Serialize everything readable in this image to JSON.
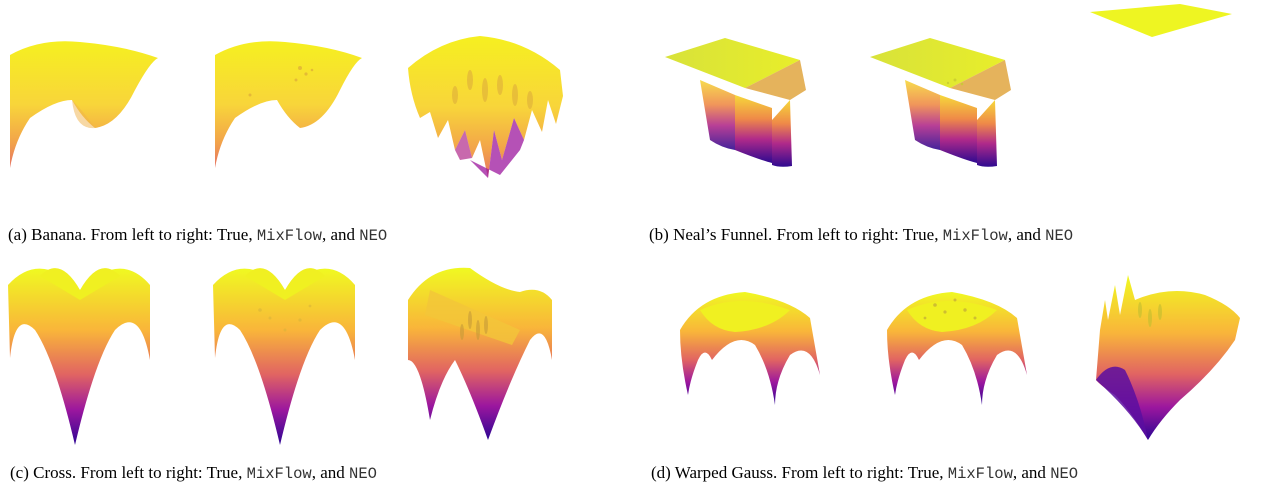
{
  "subfigures": [
    {
      "id": "a",
      "label": "(a)",
      "name": "Banana.",
      "order_text": "From left to right: True,",
      "method_1": "MixFlow",
      "conjunction": ", and",
      "method_2": "NEO"
    },
    {
      "id": "b",
      "label": "(b)",
      "name": "Neal’s Funnel.",
      "order_text": "From left to right: True,",
      "method_1": "MixFlow",
      "conjunction": ", and",
      "method_2": "NEO"
    },
    {
      "id": "c",
      "label": "(c)",
      "name": "Cross.",
      "order_text": "From left to right: True,",
      "method_1": "MixFlow",
      "conjunction": ", and",
      "method_2": "NEO"
    },
    {
      "id": "d",
      "label": "(d)",
      "name": "Warped Gauss.",
      "order_text": "From left to right: True,",
      "method_1": "MixFlow",
      "conjunction": ", and",
      "method_2": "NEO"
    }
  ],
  "colormap": {
    "low": "#3b0a8c",
    "mid_low": "#9c179e",
    "mid": "#e16462",
    "mid_high": "#f89540",
    "high": "#f0f921"
  }
}
